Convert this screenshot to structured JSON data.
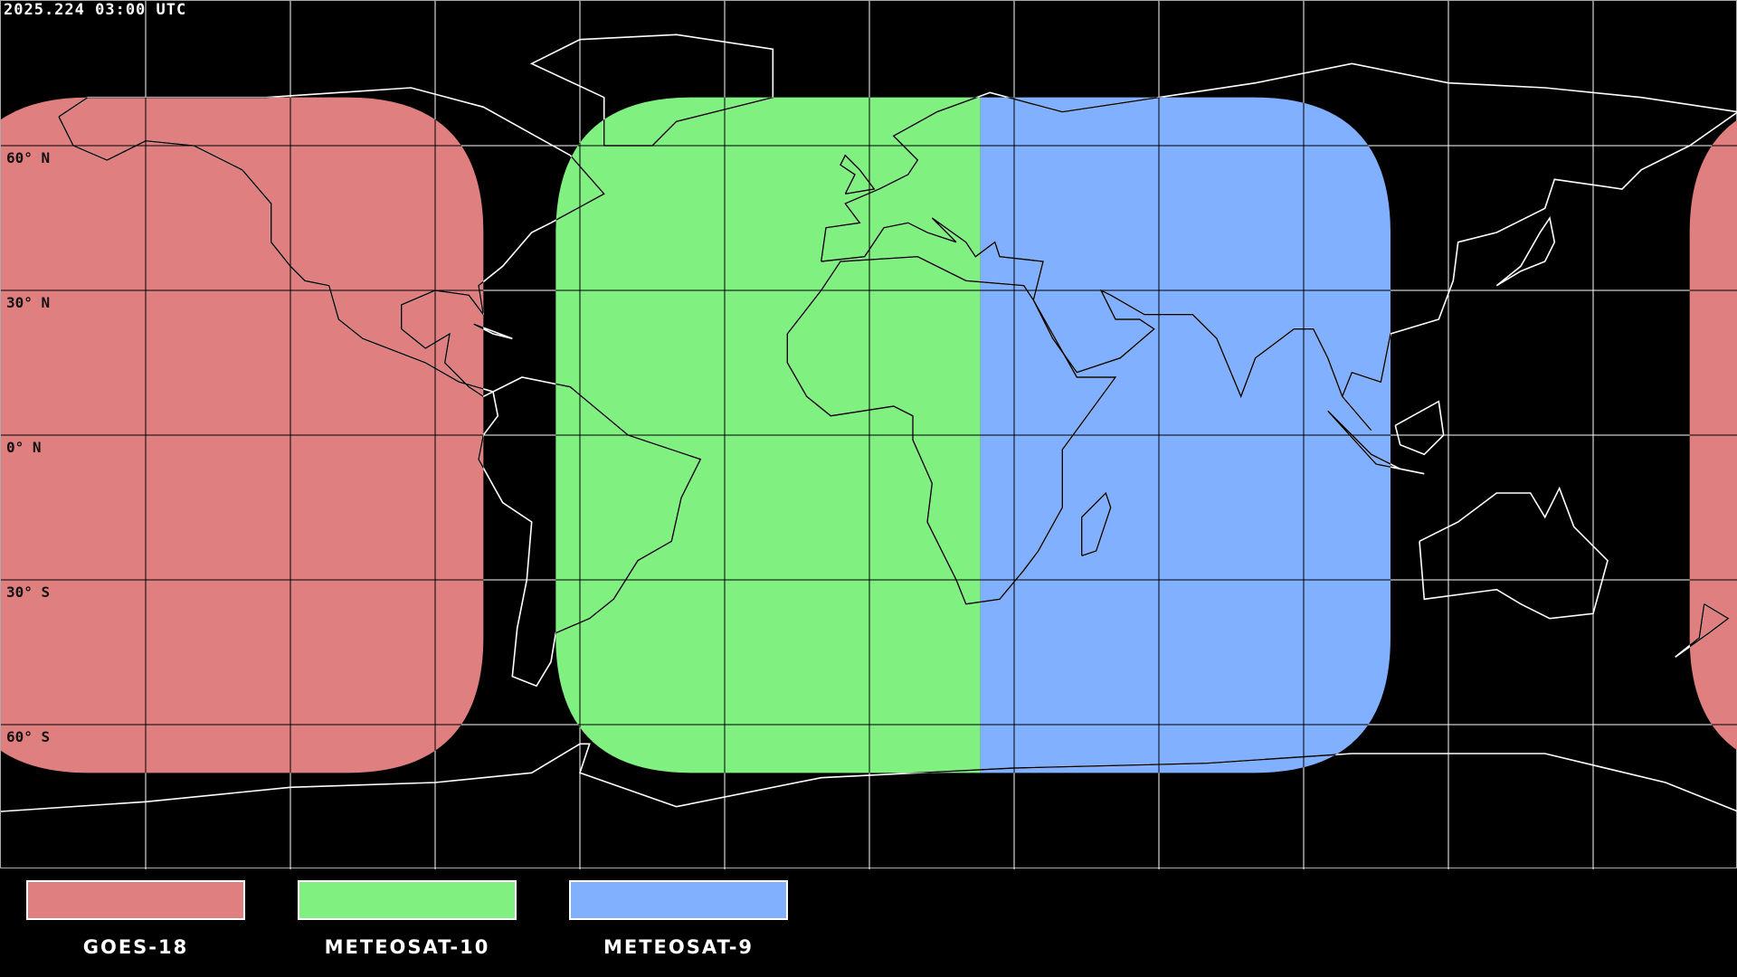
{
  "timestamp": "2025.224 03:00 UTC",
  "map": {
    "projection": "equirectangular",
    "lon_range": [
      -180,
      180
    ],
    "lat_range": [
      -90,
      90
    ],
    "grid_spacing_deg": 30,
    "lat_labels": [
      {
        "lat": 60,
        "text": "60° N"
      },
      {
        "lat": 30,
        "text": "30° N"
      },
      {
        "lat": 0,
        "text": "0° N"
      },
      {
        "lat": -30,
        "text": "30° S"
      },
      {
        "lat": -60,
        "text": "60° S"
      }
    ]
  },
  "coverage": [
    {
      "name": "GOES-18",
      "color": "#e07f7f",
      "lon_west": 170,
      "lon_east": -80,
      "lat_north": 70,
      "lat_south": -70
    },
    {
      "name": "METEOSAT-10",
      "color": "#80f080",
      "lon_west": -65,
      "lon_east": 23,
      "lat_north": 70,
      "lat_south": -70
    },
    {
      "name": "METEOSAT-9",
      "color": "#80b0ff",
      "lon_west": 23,
      "lon_east": 108,
      "lat_north": 70,
      "lat_south": -70
    }
  ],
  "legend": [
    {
      "label": "GOES-18",
      "color": "#e07f7f"
    },
    {
      "label": "METEOSAT-10",
      "color": "#80f080"
    },
    {
      "label": "METEOSAT-9",
      "color": "#80b0ff"
    }
  ]
}
